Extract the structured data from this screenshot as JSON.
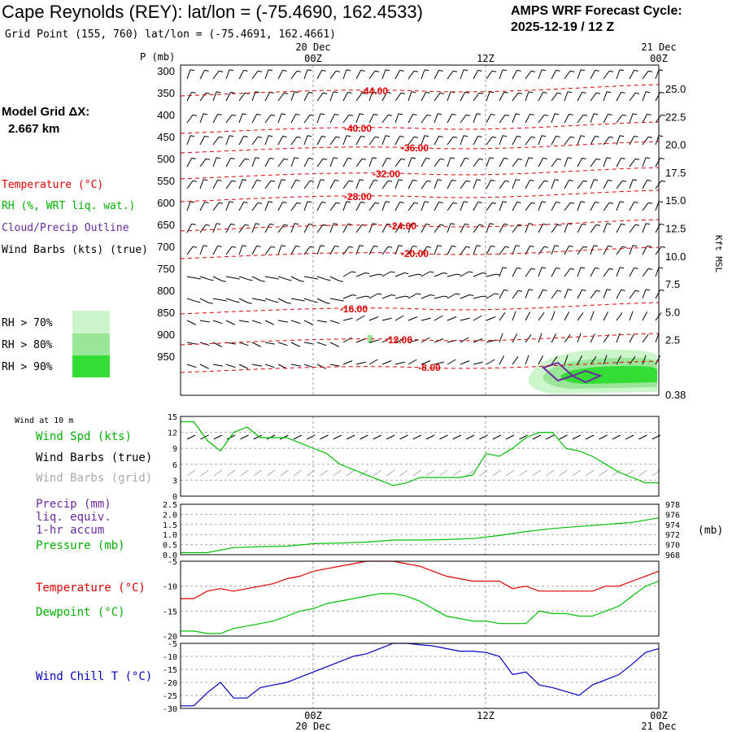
{
  "header": {
    "title": "Cape Reynolds (REY):  lat/lon = (-75.4690, 162.4533)",
    "subtitle": "Grid Point (155, 760) lat/lon = (-75.4691, 162.4661)",
    "cycle_line1": "AMPS WRF Forecast Cycle:",
    "cycle_line2": "2025-12-19 / 12  Z"
  },
  "time_axis": {
    "labels": [
      "00Z",
      "12Z",
      "00Z"
    ],
    "dates": [
      "20 Dec",
      "21 Dec"
    ],
    "bottom_labels": [
      "00Z",
      "12Z",
      "00Z"
    ],
    "bottom_dates": [
      "20 Dec",
      "21 Dec"
    ]
  },
  "colors": {
    "temperature": "#e00000",
    "rh": "#00c000",
    "cloud": "#6a2aa0",
    "wind": "#000000",
    "wind_grid": "#aaaaaa",
    "windchill": "#0000c0",
    "rh70": "#ccf5cc",
    "rh80": "#99e699",
    "rh90": "#33dd33"
  },
  "legend": {
    "model_grid_line1": "Model Grid ΔX:",
    "model_grid_line2": "2.667 km",
    "temperature": "Temperature (°C)",
    "rh": "RH (%, WRT liq. wat.)",
    "cloud": "Cloud/Precip Outline",
    "wind": "Wind Barbs (kts) (true)",
    "rh70": "RH > 70%",
    "rh80": "RH > 80%",
    "rh90": "RH > 90%"
  },
  "profile": {
    "pressure_label": "P (mb)",
    "pressure_ticks": [
      "300",
      "350",
      "400",
      "450",
      "500",
      "550",
      "600",
      "650",
      "700",
      "750",
      "800",
      "850",
      "900",
      "950"
    ],
    "height_ticks": [
      "25.0",
      "22.5",
      "20.0",
      "17.5",
      "15.0",
      "12.5",
      "10.0",
      "7.5",
      "5.0",
      "2.5",
      "0.38"
    ],
    "height_label": "Kft MSL",
    "isotherm_labels": [
      "-44.00",
      "-40.00",
      "-36.00",
      "-32.00",
      "-28.00",
      "-24.00",
      "-20.00",
      "-16.00",
      "-12.00",
      "-8.00"
    ]
  },
  "panels": {
    "wind10m_title": "Wind at 10 m",
    "wind_speed": "Wind Spd (kts)",
    "barbs_true": "Wind Barbs (true)",
    "barbs_grid": "Wind Barbs (grid)",
    "wind_ticks": [
      "15",
      "12",
      "9",
      "6",
      "3",
      "0"
    ],
    "precip_line1": "Precip (mm)",
    "precip_line2": "liq. equiv.",
    "precip_line3": "1-hr accum",
    "pressure": "Pressure (mb)",
    "precip_ticks": [
      "2.5",
      "2.0",
      "1.5",
      "1.0",
      "0.5",
      "0.0"
    ],
    "pressure_ticks": [
      "978",
      "976",
      "974",
      "972",
      "970",
      "968"
    ],
    "pressure_unit": "(mb)",
    "temperature": "Temperature (°C)",
    "dewpoint": "Dewpoint (°C)",
    "temp_ticks": [
      "-5",
      "-10",
      "-15",
      "-20"
    ],
    "windchill": "Wind Chill T (°C)",
    "wc_ticks": [
      "-5",
      "-10",
      "-15",
      "-20",
      "-25",
      "-30"
    ]
  },
  "chart_data": [
    {
      "type": "line",
      "title": "Wind at 10 m",
      "ylabel": "Wind Spd (kts)",
      "ylim": [
        0,
        15
      ],
      "x_hours": [
        0,
        1,
        2,
        3,
        4,
        5,
        6,
        7,
        8,
        9,
        10,
        11,
        12,
        13,
        14,
        15,
        16,
        17,
        18,
        19,
        20,
        21,
        22,
        23,
        24,
        25,
        26,
        27,
        28,
        29,
        30,
        31,
        32,
        33,
        34,
        35,
        36
      ],
      "series": [
        {
          "name": "Wind Spd (kts)",
          "values": [
            14,
            14,
            10.5,
            8.5,
            12,
            13,
            11,
            11,
            11,
            10,
            9,
            8,
            6,
            5,
            4,
            3,
            2,
            2.5,
            3.5,
            3.5,
            3.5,
            3.5,
            4,
            8,
            7.5,
            9,
            11,
            12,
            12,
            9,
            8.5,
            7.5,
            6,
            4.5,
            3.5,
            2.5,
            2.5
          ]
        }
      ]
    },
    {
      "type": "line",
      "title": "Precip / Pressure",
      "ylim_precip": [
        0,
        2.5
      ],
      "ylim_pressure": [
        968,
        978
      ],
      "x_hours": [
        0,
        2,
        4,
        6,
        8,
        10,
        12,
        14,
        16,
        18,
        20,
        22,
        24,
        26,
        28,
        30,
        32,
        34,
        36
      ],
      "series": [
        {
          "name": "Pressure (mb)",
          "values": [
            968.4,
            968.4,
            969.4,
            969.6,
            969.7,
            970.2,
            970.3,
            970.5,
            970.9,
            970.9,
            971.0,
            971.2,
            971.8,
            972.6,
            973.2,
            973.6,
            974.0,
            974.4,
            975.3
          ]
        },
        {
          "name": "Precip (mm)",
          "values": [
            0,
            0,
            0,
            0,
            0,
            0,
            0,
            0,
            0,
            0,
            0,
            0,
            0,
            0,
            0,
            0,
            0,
            0,
            0
          ]
        }
      ]
    },
    {
      "type": "line",
      "title": "Temperature / Dewpoint",
      "ylim": [
        -20,
        -5
      ],
      "x_hours": [
        0,
        1,
        2,
        3,
        4,
        5,
        6,
        7,
        8,
        9,
        10,
        11,
        12,
        13,
        14,
        15,
        16,
        17,
        18,
        19,
        20,
        21,
        22,
        23,
        24,
        25,
        26,
        27,
        28,
        29,
        30,
        31,
        32,
        33,
        34,
        35,
        36
      ],
      "series": [
        {
          "name": "Temperature (°C)",
          "values": [
            -12.5,
            -12.5,
            -11,
            -10.5,
            -11,
            -10.5,
            -10,
            -9.5,
            -8.5,
            -8,
            -7,
            -6.5,
            -6,
            -5.5,
            -5,
            -5,
            -5,
            -5.5,
            -6,
            -7,
            -8,
            -8.5,
            -9,
            -9,
            -9,
            -10.5,
            -10,
            -11,
            -11,
            -11,
            -11,
            -11,
            -10,
            -10,
            -9,
            -8,
            -7
          ]
        },
        {
          "name": "Dewpoint (°C)",
          "values": [
            -19,
            -19,
            -19.5,
            -19.5,
            -18.5,
            -18,
            -17.5,
            -17,
            -16,
            -15,
            -14.5,
            -13.5,
            -13,
            -12.5,
            -12,
            -11.5,
            -11.5,
            -12,
            -13,
            -14.5,
            -16,
            -16.5,
            -17,
            -17,
            -17.5,
            -17.5,
            -17.5,
            -15,
            -15.5,
            -15.5,
            -16,
            -16,
            -15,
            -14,
            -12,
            -10,
            -9
          ]
        }
      ]
    },
    {
      "type": "line",
      "title": "Wind Chill",
      "ylim": [
        -30,
        -5
      ],
      "x_hours": [
        0,
        1,
        2,
        3,
        4,
        5,
        6,
        7,
        8,
        9,
        10,
        11,
        12,
        13,
        14,
        15,
        16,
        17,
        18,
        19,
        20,
        21,
        22,
        23,
        24,
        25,
        26,
        27,
        28,
        29,
        30,
        31,
        32,
        33,
        34,
        35,
        36
      ],
      "series": [
        {
          "name": "Wind Chill T (°C)",
          "values": [
            -29,
            -29,
            -24,
            -20,
            -26,
            -26,
            -22,
            -21,
            -20,
            -18,
            -16,
            -14,
            -12,
            -10,
            -9,
            -7,
            -5,
            -5,
            -5.5,
            -6,
            -7,
            -8,
            -8,
            -8.5,
            -10,
            -17,
            -16,
            -21,
            -22,
            -23.5,
            -25,
            -21,
            -19,
            -17,
            -13,
            -8.5,
            -7
          ]
        }
      ]
    }
  ]
}
